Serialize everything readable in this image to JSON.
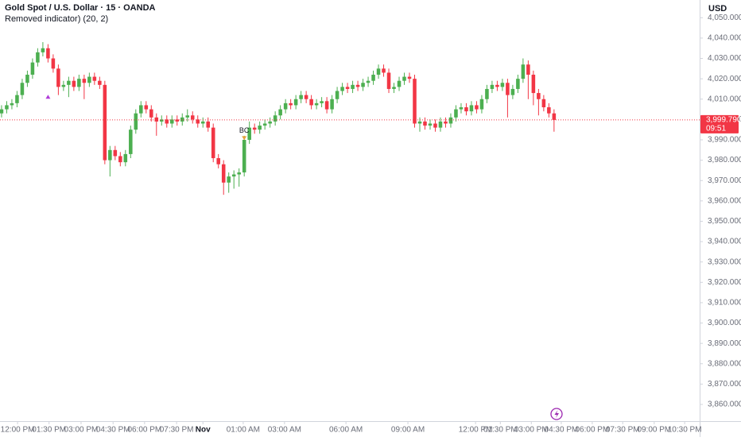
{
  "chart_data": {
    "type": "candlestick",
    "title": "Gold Spot / U.S. Dollar · 15 · OANDA",
    "subtitle": "Removed indicator) (20, 2)",
    "currency": "USD",
    "last_price_label": "3,999.790",
    "countdown": "09:51",
    "up_color": "#4caf50",
    "down_color": "#f23645",
    "open": [
      4003,
      4005,
      4007,
      4008,
      4012,
      4018,
      4022,
      4028,
      4033,
      4035,
      4030,
      4025,
      4016,
      4017,
      4019,
      4016,
      4020,
      4018,
      4021,
      4019,
      4017,
      3980,
      3985,
      3982,
      3979,
      3983,
      3995,
      4003,
      4007,
      4005,
      4001,
      3999,
      4000,
      3998,
      4000,
      3999,
      4001,
      4002,
      4000,
      3998,
      3999,
      3996,
      3981,
      3978,
      3969,
      3972,
      3973,
      3974,
      3990,
      3996,
      3995,
      3997,
      3998,
      3999,
      4002,
      4005,
      4008,
      4007,
      4010,
      4012,
      4010,
      4007,
      4008,
      4009,
      4005,
      4010,
      4014,
      4016,
      4015,
      4017,
      4016,
      4018,
      4019,
      4022,
      4025,
      4023,
      4015,
      4016,
      4019,
      4021,
      4020,
      3998,
      3999,
      3997,
      3998,
      3996,
      3999,
      3998,
      4001,
      4005,
      4006,
      4004,
      4007,
      4005,
      4010,
      4015,
      4017,
      4016,
      4018,
      4012,
      4015,
      4020,
      4027,
      4022,
      4013,
      4010,
      4006,
      4003
    ],
    "high": [
      4007,
      4009,
      4010,
      4014,
      4020,
      4024,
      4030,
      4035,
      4038,
      4037,
      4032,
      4027,
      4019,
      4021,
      4021,
      4022,
      4022,
      4023,
      4023,
      4021,
      4019,
      3987,
      3987,
      3984,
      3985,
      3997,
      4005,
      4009,
      4009,
      4007,
      4003,
      4002,
      4002,
      4002,
      4002,
      4003,
      4005,
      4004,
      4002,
      4001,
      4001,
      3998,
      3983,
      3980,
      3974,
      3975,
      3976,
      3992,
      3999,
      3998,
      3999,
      4000,
      4001,
      4004,
      4007,
      4010,
      4010,
      4012,
      4014,
      4014,
      4012,
      4010,
      4011,
      4011,
      4012,
      4016,
      4018,
      4018,
      4019,
      4019,
      4020,
      4021,
      4024,
      4027,
      4027,
      4025,
      4018,
      4021,
      4023,
      4023,
      4022,
      4001,
      4001,
      4000,
      4000,
      4001,
      4001,
      4003,
      4007,
      4008,
      4008,
      4009,
      4009,
      4012,
      4017,
      4019,
      4019,
      4020,
      4020,
      4017,
      4022,
      4030,
      4029,
      4024,
      4015,
      4012,
      4008,
      4005
    ],
    "low": [
      4001,
      4003,
      4005,
      4006,
      4010,
      4016,
      4020,
      4026,
      4031,
      4028,
      4023,
      4012,
      4014,
      4011,
      4014,
      4014,
      4010,
      4016,
      4017,
      4015,
      3978,
      3972,
      3980,
      3977,
      3977,
      3981,
      3993,
      4001,
      4003,
      3999,
      3992,
      3997,
      3996,
      3996,
      3997,
      3997,
      3999,
      3998,
      3996,
      3996,
      3994,
      3979,
      3976,
      3963,
      3964,
      3966,
      3967,
      3972,
      3988,
      3993,
      3993,
      3995,
      3996,
      3997,
      4000,
      4003,
      4005,
      4005,
      4008,
      4008,
      4005,
      4005,
      4006,
      4003,
      4003,
      4008,
      4012,
      4013,
      4013,
      4014,
      4014,
      4016,
      4017,
      4020,
      4021,
      4013,
      4013,
      4014,
      4017,
      4018,
      3996,
      3994,
      3995,
      3995,
      3994,
      3994,
      3996,
      3996,
      3999,
      4003,
      4002,
      4002,
      4003,
      4003,
      4008,
      4013,
      4014,
      4014,
      4001,
      4010,
      4013,
      4018,
      4010,
      4007,
      4002,
      4004,
      4001,
      3994
    ],
    "close": [
      4005,
      4007,
      4008,
      4012,
      4018,
      4022,
      4028,
      4033,
      4035,
      4030,
      4025,
      4016,
      4017,
      4019,
      4016,
      4020,
      4018,
      4021,
      4019,
      4017,
      3980,
      3985,
      3982,
      3979,
      3983,
      3995,
      4003,
      4007,
      4005,
      4001,
      3999,
      4000,
      3998,
      4000,
      3999,
      4001,
      4002,
      4000,
      3998,
      3999,
      3996,
      3981,
      3978,
      3969,
      3972,
      3973,
      3974,
      3990,
      3996,
      3995,
      3997,
      3998,
      3999,
      4002,
      4005,
      4008,
      4007,
      4010,
      4012,
      4010,
      4007,
      4008,
      4009,
      4005,
      4010,
      4014,
      4016,
      4015,
      4017,
      4016,
      4018,
      4019,
      4022,
      4025,
      4023,
      4015,
      4016,
      4019,
      4021,
      4020,
      3998,
      3999,
      3997,
      3998,
      3996,
      3999,
      3998,
      4001,
      4005,
      4006,
      4004,
      4007,
      4005,
      4010,
      4015,
      4017,
      4016,
      4018,
      4012,
      4015,
      4020,
      4027,
      4022,
      4013,
      4010,
      4006,
      4003,
      3999.79
    ],
    "signals": [
      {
        "x": 9,
        "price": 4011,
        "direction": "up",
        "color": "#b03cd8"
      },
      {
        "x": 47,
        "price": 3991,
        "direction": "down",
        "color": "#e6a23c",
        "label": "BC"
      }
    ],
    "xlim": [
      -0.3,
      135.2
    ],
    "xticks": [
      {
        "value": 3.1,
        "label": "12:00 PM"
      },
      {
        "value": 9.2,
        "label": "01:30 PM"
      },
      {
        "value": 15.4,
        "label": "03:00 PM"
      },
      {
        "value": 21.6,
        "label": "04:30 PM"
      },
      {
        "value": 27.7,
        "label": "06:00 PM"
      },
      {
        "value": 33.9,
        "label": "07:30 PM"
      },
      {
        "value": 39,
        "label": "Nov"
      },
      {
        "value": 46.8,
        "label": "01:00 AM"
      },
      {
        "value": 54.8,
        "label": "03:00 AM"
      },
      {
        "value": 66.7,
        "label": "06:00 AM"
      },
      {
        "value": 78.7,
        "label": "09:00 AM"
      },
      {
        "value": 91.8,
        "label": "12:00 PM"
      },
      {
        "value": 96.6,
        "label": "01:30 PM"
      },
      {
        "value": 102.6,
        "label": "03:00 PM"
      },
      {
        "value": 108.4,
        "label": "04:30 PM"
      },
      {
        "value": 114.4,
        "label": "06:00 PM"
      },
      {
        "value": 120.3,
        "label": "07:30 PM"
      },
      {
        "value": 126.4,
        "label": "09:00 PM"
      },
      {
        "value": 132.3,
        "label": "10:30 PM"
      }
    ],
    "ylim": [
      3851.8,
      4058.7
    ],
    "yticks": [
      {
        "value": 3860,
        "label": "3,860.000"
      },
      {
        "value": 3870,
        "label": "3,870.000"
      },
      {
        "value": 3880,
        "label": "3,880.000"
      },
      {
        "value": 3890,
        "label": "3,890.000"
      },
      {
        "value": 3900,
        "label": "3,900.000"
      },
      {
        "value": 3910,
        "label": "3,910.000"
      },
      {
        "value": 3920,
        "label": "3,920.000"
      },
      {
        "value": 3930,
        "label": "3,930.000"
      },
      {
        "value": 3940,
        "label": "3,940.000"
      },
      {
        "value": 3950,
        "label": "3,950.000"
      },
      {
        "value": 3960,
        "label": "3,960.000"
      },
      {
        "value": 3970,
        "label": "3,970.000"
      },
      {
        "value": 3980,
        "label": "3,980.000"
      },
      {
        "value": 3990,
        "label": "3,990.000"
      },
      {
        "value": 4000,
        "label": "4,000.000"
      },
      {
        "value": 4010,
        "label": "4,010.000"
      },
      {
        "value": 4020,
        "label": "4,020.000"
      },
      {
        "value": 4030,
        "label": "4,030.000"
      },
      {
        "value": 4040,
        "label": "4,040.000"
      },
      {
        "value": 4050,
        "label": "4,050.000"
      }
    ]
  }
}
